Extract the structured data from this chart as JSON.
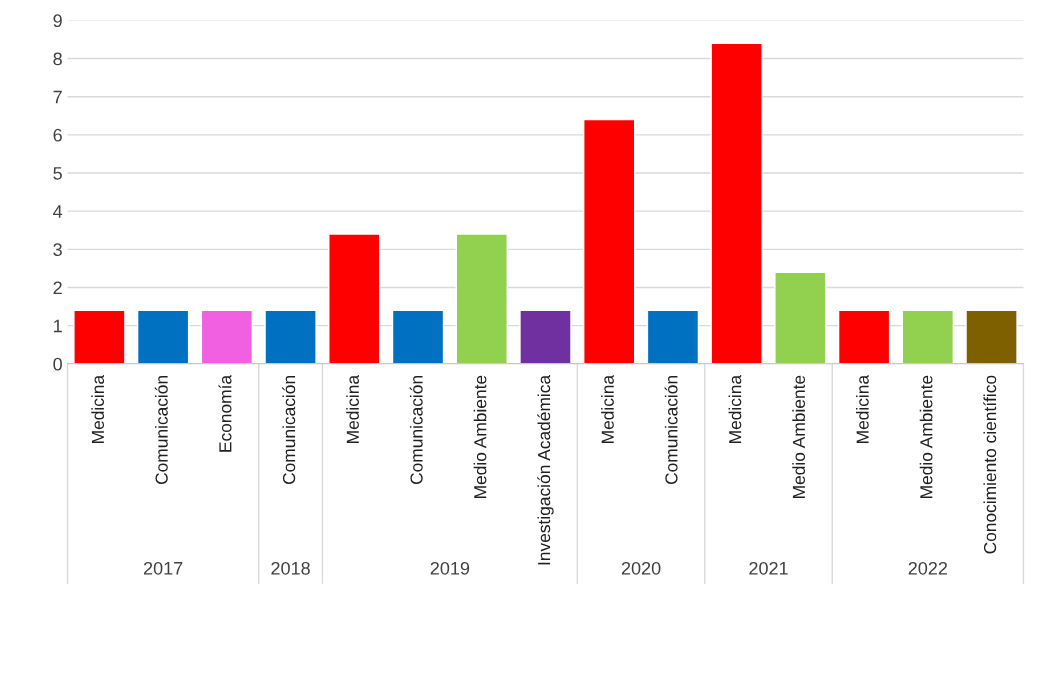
{
  "chart_data": {
    "type": "bar",
    "categories": [
      "Medicina",
      "Comunicación",
      "Economía",
      "Comunicación",
      "Medicina",
      "Comunicación",
      "Medio Ambiente",
      "Investigación Académica",
      "Medicina",
      "Comunicación",
      "Medicina",
      "Medio Ambiente",
      "Medicina",
      "Medio Ambiente",
      "Conocimiento científico"
    ],
    "values": [
      1.4,
      1.4,
      1.4,
      1.4,
      3.4,
      1.4,
      3.4,
      1.4,
      6.4,
      1.4,
      8.4,
      2.4,
      1.4,
      1.4,
      1.4
    ],
    "colors": [
      "#ff0000",
      "#0070c0",
      "#f060e0",
      "#0070c0",
      "#ff0000",
      "#0070c0",
      "#92d050",
      "#7030a0",
      "#ff0000",
      "#0070c0",
      "#ff0000",
      "#92d050",
      "#ff0000",
      "#92d050",
      "#7f6000"
    ],
    "ylim": [
      0,
      9
    ],
    "yticks": [
      0,
      1,
      2,
      3,
      4,
      5,
      6,
      7,
      8,
      9
    ],
    "grid": "y",
    "annotations": [
      "2017",
      "2018",
      "2019",
      "2020",
      "2021",
      "2022"
    ]
  }
}
